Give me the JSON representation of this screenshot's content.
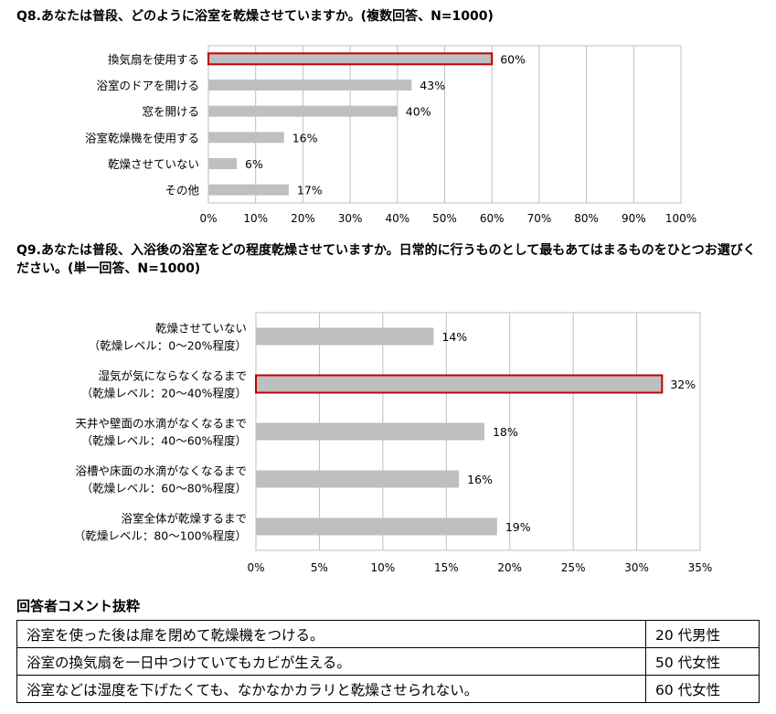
{
  "q8": {
    "title": "Q8.あなたは普段、どのように浴室を乾燥させていますか。(複数回答、N=1000)",
    "chart_data": {
      "type": "bar",
      "orientation": "horizontal",
      "categories": [
        "換気扇を使用する",
        "浴室のドアを開ける",
        "窓を開ける",
        "浴室乾燥機を使用する",
        "乾燥させていない",
        "その他"
      ],
      "values": [
        60,
        43,
        40,
        16,
        6,
        17
      ],
      "value_labels": [
        "60%",
        "43%",
        "40%",
        "16%",
        "6%",
        "17%"
      ],
      "highlight_index": 0,
      "xlim": [
        0,
        100
      ],
      "x_ticks": [
        0,
        10,
        20,
        30,
        40,
        50,
        60,
        70,
        80,
        90,
        100
      ],
      "x_tick_labels": [
        "0%",
        "10%",
        "20%",
        "30%",
        "40%",
        "50%",
        "60%",
        "70%",
        "80%",
        "90%",
        "100%"
      ],
      "grid": true,
      "bar_color": "#bfbfbf",
      "highlight_border": "#c00000"
    }
  },
  "q9": {
    "title": "Q9.あなたは普段、入浴後の浴室をどの程度乾燥させていますか。日常的に行うものとして最もあてはまるものをひとつお選びください。(単一回答、N=1000)",
    "chart_data": {
      "type": "bar",
      "orientation": "horizontal",
      "categories": [
        [
          "乾燥させていない",
          "（乾燥レベル：0～20%程度）"
        ],
        [
          "湿気が気にならなくなるまで",
          "（乾燥レベル：20～40%程度）"
        ],
        [
          "天井や壁面の水滴がなくなるまで",
          "（乾燥レベル：40～60%程度）"
        ],
        [
          "浴槽や床面の水滴がなくなるまで",
          "（乾燥レベル：60～80%程度）"
        ],
        [
          "浴室全体が乾燥するまで",
          "（乾燥レベル：80～100%程度）"
        ]
      ],
      "values": [
        14,
        32,
        18,
        16,
        19
      ],
      "value_labels": [
        "14%",
        "32%",
        "18%",
        "16%",
        "19%"
      ],
      "highlight_index": 1,
      "xlim": [
        0,
        35
      ],
      "x_ticks": [
        0,
        5,
        10,
        15,
        20,
        25,
        30,
        35
      ],
      "x_tick_labels": [
        "0%",
        "5%",
        "10%",
        "15%",
        "20%",
        "25%",
        "30%",
        "35%"
      ],
      "grid": true,
      "bar_color": "#bfbfbf",
      "highlight_border": "#c00000"
    }
  },
  "comments": {
    "heading": "回答者コメント抜粋",
    "rows": [
      {
        "text": "浴室を使った後は扉を閉めて乾燥機をつける。",
        "age": "20 代男性"
      },
      {
        "text": "浴室の換気扇を一日中つけていてもカビが生える。",
        "age": "50 代女性"
      },
      {
        "text": "浴室などは湿度を下げたくても、なかなかカラリと乾燥させられない。",
        "age": "60 代女性"
      }
    ]
  }
}
